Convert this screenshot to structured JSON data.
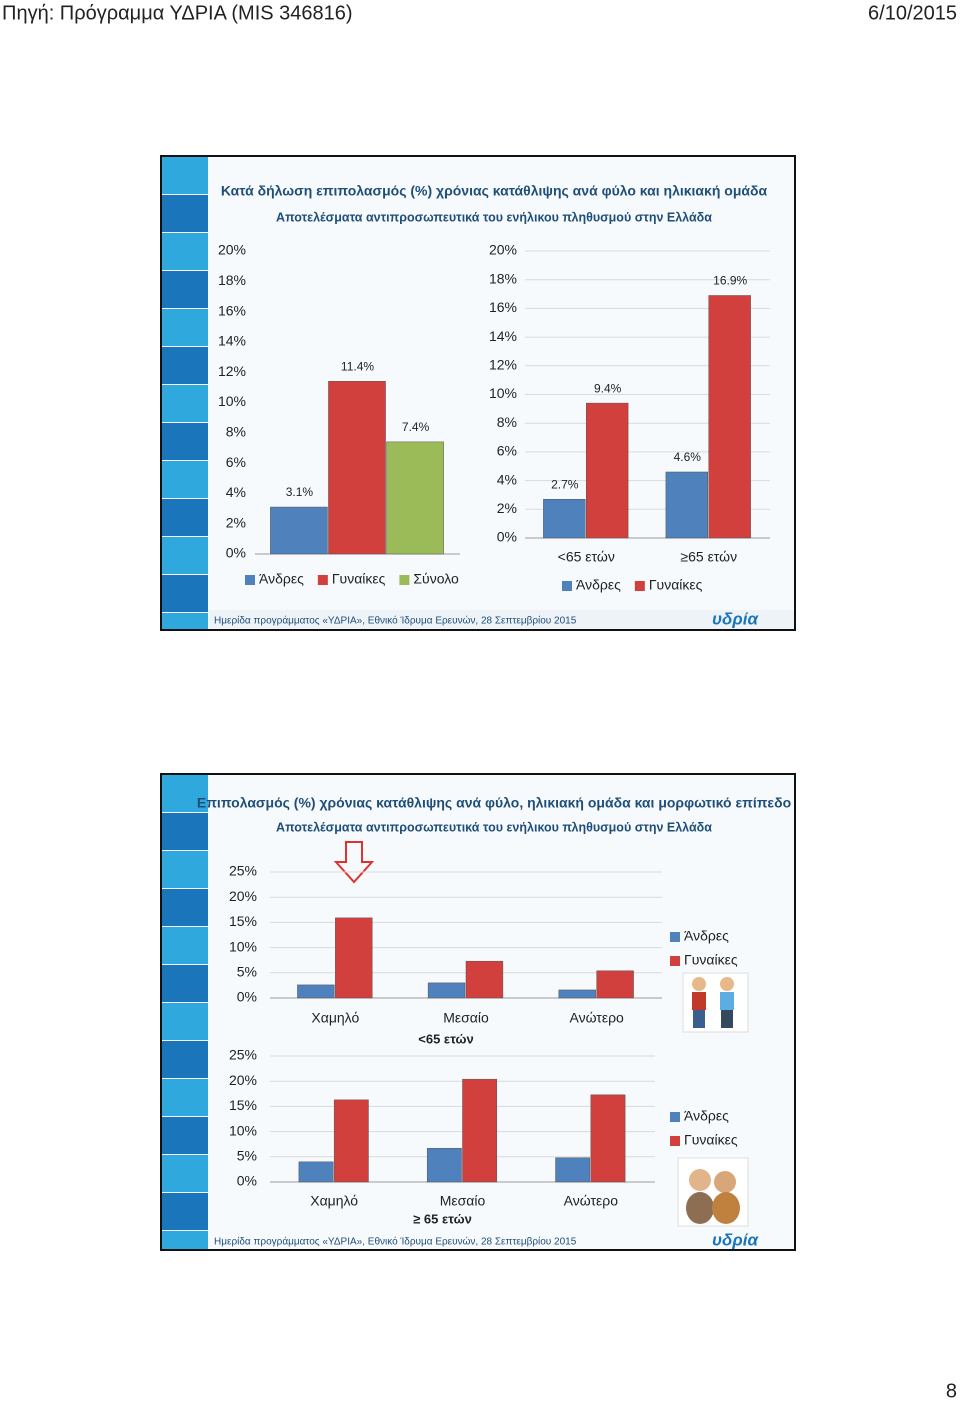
{
  "header": {
    "source": "Πηγή: Πρόγραμμα ΥΔΡΙΑ (MIS 346816)",
    "date": "6/10/2015"
  },
  "slides": [
    {
      "title": "Κατά δήλωση επιπολασμός (%) χρόνιας κατάθλιψης ανά φύλο και ηλικιακή ομάδα",
      "subtitle": "Αποτελέσματα αντιπροσωπευτικά του ενήλικου πληθυσμού στην Ελλάδα",
      "footer": "Ημερίδα προγράμματος «ΥΔΡΙΑ», Εθνικό Ίδρυμα Ερευνών, 28 Σεπτεμβρίου 2015",
      "logo": "υδρία"
    },
    {
      "title": "Επιπολασμός (%) χρόνιας κατάθλιψης ανά φύλο, ηλικιακή ομάδα και μορφωτικό επίπεδο",
      "subtitle": "Αποτελέσματα αντιπροσωπευτικά του ενήλικου πληθυσμού στην Ελλάδα",
      "footer": "Ημερίδα προγράμματος «ΥΔΡΙΑ», Εθνικό Ίδρυμα Ερευνών, 28 Σεπτεμβρίου 2015",
      "logo": "υδρία"
    }
  ],
  "page_number": "8",
  "chart_data": [
    {
      "type": "bar",
      "categories": [
        null
      ],
      "legend": "bottom",
      "grid": false,
      "series": [
        {
          "name": "Άνδρες",
          "color": "#4f81bd",
          "values": [
            3.1
          ],
          "value_labels": [
            "3.1%"
          ]
        },
        {
          "name": "Γυναίκες",
          "color": "#d2403e",
          "values": [
            11.4
          ],
          "value_labels": [
            "11.4%"
          ]
        },
        {
          "name": "Σύνολο",
          "color": "#9bbb59",
          "values": [
            7.4
          ],
          "value_labels": [
            "7.4%"
          ]
        }
      ],
      "ylim": [
        0,
        20
      ],
      "yticks": [
        {
          "value": 0,
          "label": "0%"
        },
        {
          "value": 2,
          "label": "2%"
        },
        {
          "value": 4,
          "label": "4%"
        },
        {
          "value": 6,
          "label": "6%"
        },
        {
          "value": 8,
          "label": "8%"
        },
        {
          "value": 10,
          "label": "10%"
        },
        {
          "value": 12,
          "label": "12%"
        },
        {
          "value": 14,
          "label": "14%"
        },
        {
          "value": 16,
          "label": "16%"
        },
        {
          "value": 18,
          "label": "18%"
        },
        {
          "value": 20,
          "label": "20%"
        }
      ]
    },
    {
      "type": "bar",
      "categories": [
        "<65 ετών",
        "≥65 ετών"
      ],
      "legend": "bottom",
      "grid": true,
      "series": [
        {
          "name": "Άνδρες",
          "color": "#4f81bd",
          "values": [
            2.7,
            4.6
          ],
          "value_labels": [
            "2.7%",
            "4.6%"
          ]
        },
        {
          "name": "Γυναίκες",
          "color": "#d2403e",
          "values": [
            9.4,
            16.9
          ],
          "value_labels": [
            "9.4%",
            "16.9%"
          ]
        }
      ],
      "ylim": [
        0,
        20
      ],
      "yticks": [
        {
          "value": 0,
          "label": "0%"
        },
        {
          "value": 2,
          "label": "2%"
        },
        {
          "value": 4,
          "label": "4%"
        },
        {
          "value": 6,
          "label": "6%"
        },
        {
          "value": 8,
          "label": "8%"
        },
        {
          "value": 10,
          "label": "10%"
        },
        {
          "value": 12,
          "label": "12%"
        },
        {
          "value": 14,
          "label": "14%"
        },
        {
          "value": 16,
          "label": "16%"
        },
        {
          "value": 18,
          "label": "18%"
        },
        {
          "value": 20,
          "label": "20%"
        }
      ]
    },
    {
      "type": "bar",
      "categories": [
        "Χαμηλό",
        "Μεσαίο",
        "Ανώτερο"
      ],
      "xlabel": "<65 ετών",
      "legend": "right",
      "grid": true,
      "series": [
        {
          "name": "Άνδρες",
          "color": "#4f81bd",
          "values": [
            2.6,
            3.0,
            1.6
          ]
        },
        {
          "name": "Γυναίκες",
          "color": "#d2403e",
          "values": [
            15.9,
            7.3,
            5.4
          ]
        }
      ],
      "ylim": [
        0,
        25
      ],
      "yticks": [
        {
          "value": 0,
          "label": "0%"
        },
        {
          "value": 5,
          "label": "5%"
        },
        {
          "value": 10,
          "label": "10%"
        },
        {
          "value": 15,
          "label": "15%"
        },
        {
          "value": 20,
          "label": "20%"
        },
        {
          "value": 25,
          "label": "25%"
        }
      ]
    },
    {
      "type": "bar",
      "categories": [
        "Χαμηλό",
        "Μεσαίο",
        "Ανώτερο"
      ],
      "xlabel": "≥ 65 ετών",
      "legend": "right",
      "grid": true,
      "series": [
        {
          "name": "Άνδρες",
          "color": "#4f81bd",
          "values": [
            4.0,
            6.7,
            4.8
          ]
        },
        {
          "name": "Γυναίκες",
          "color": "#d2403e",
          "values": [
            16.3,
            20.4,
            17.3
          ]
        }
      ],
      "ylim": [
        0,
        25
      ],
      "yticks": [
        {
          "value": 0,
          "label": "0%"
        },
        {
          "value": 5,
          "label": "5%"
        },
        {
          "value": 10,
          "label": "10%"
        },
        {
          "value": 15,
          "label": "15%"
        },
        {
          "value": 20,
          "label": "20%"
        },
        {
          "value": 25,
          "label": "25%"
        }
      ]
    }
  ]
}
